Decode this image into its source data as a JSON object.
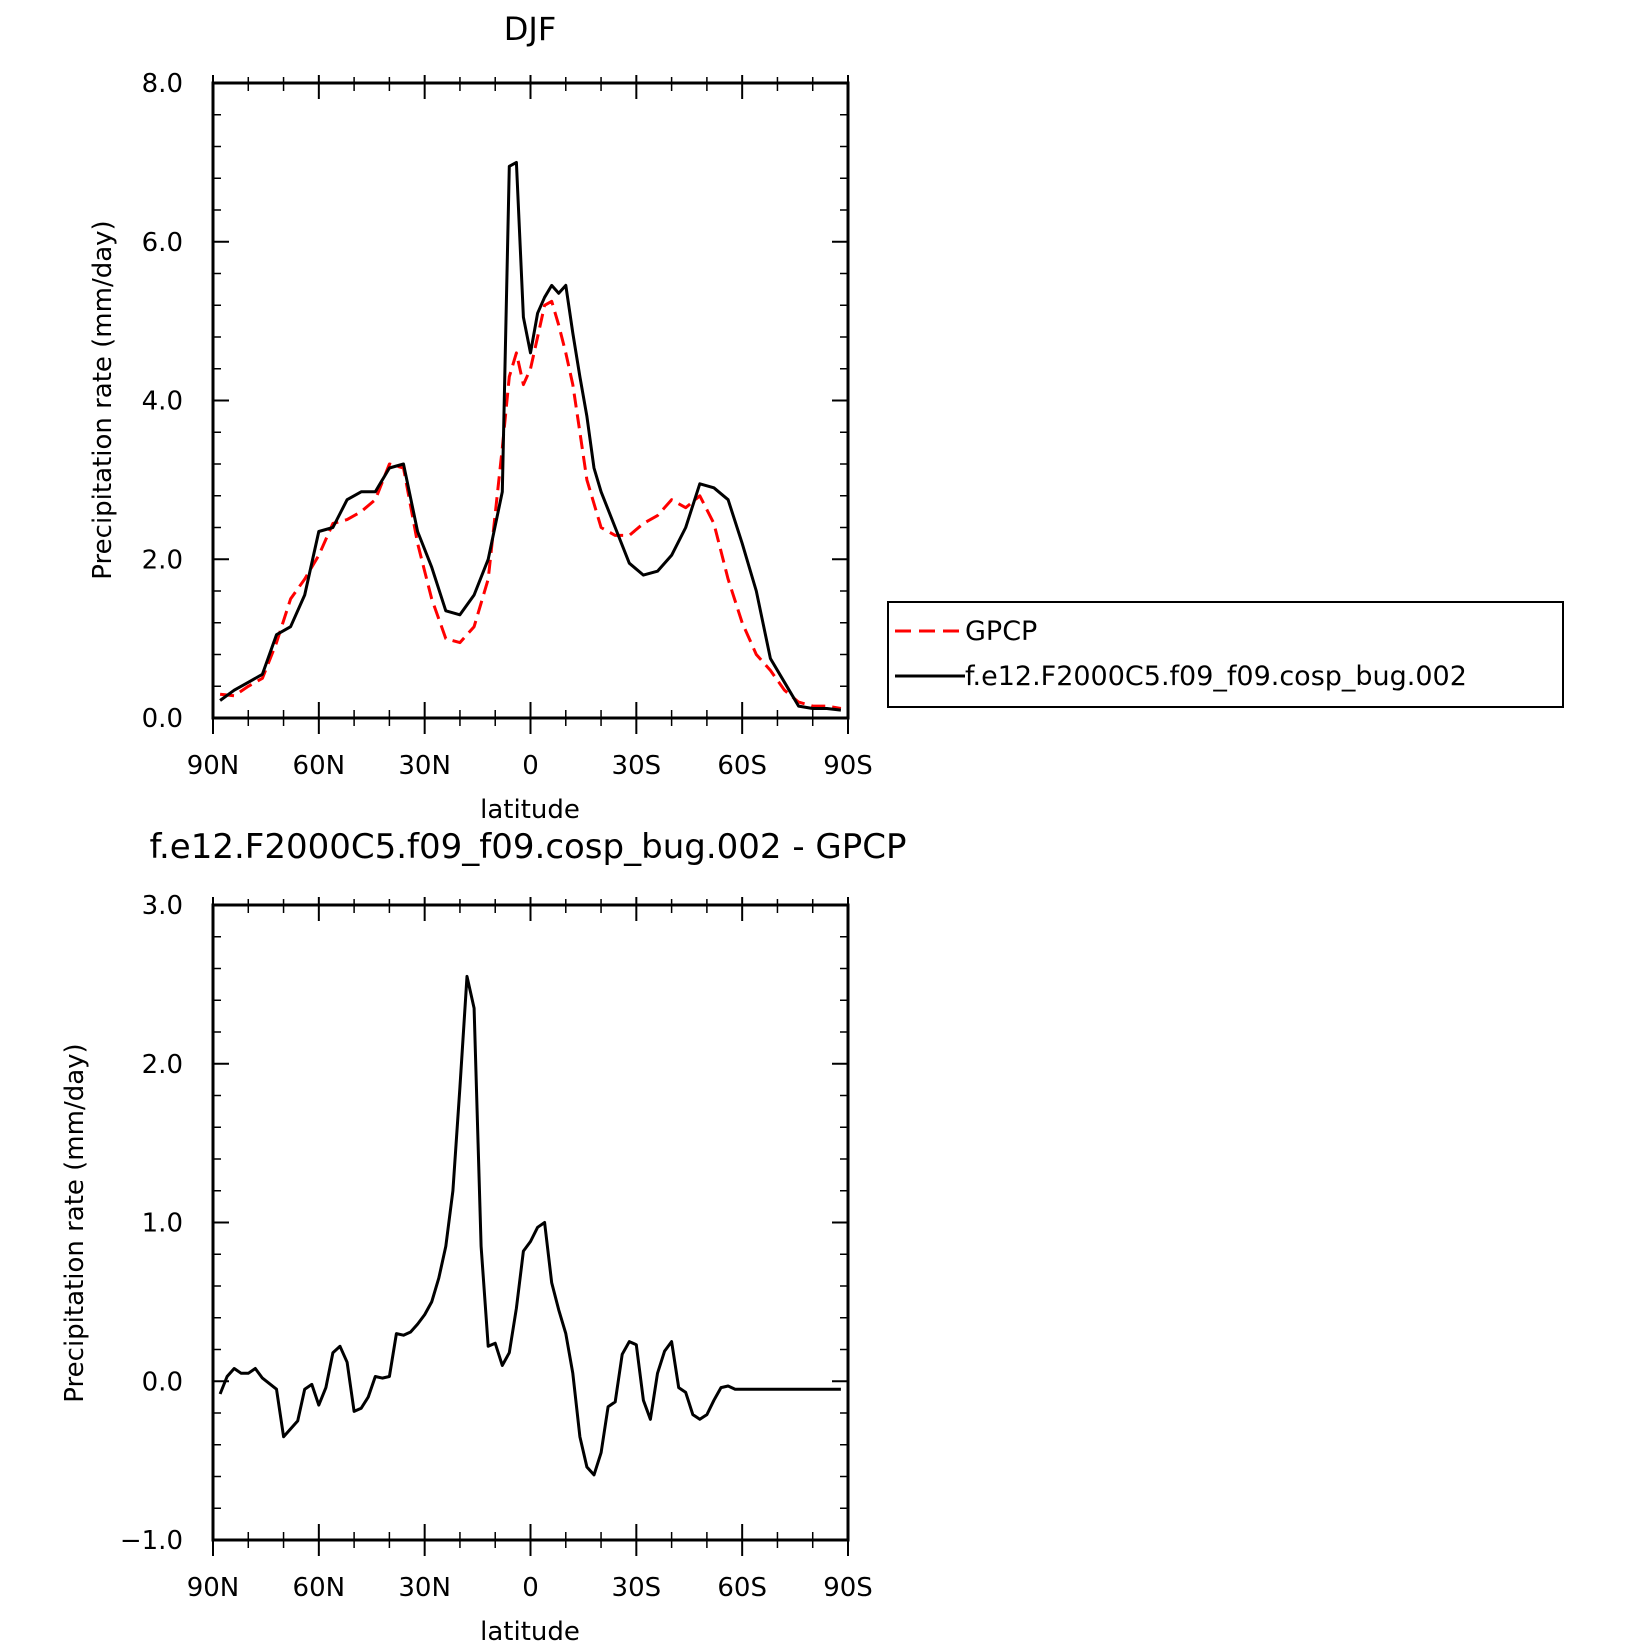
{
  "chart_data": [
    {
      "type": "line",
      "title": "DJF",
      "xlabel": "latitude",
      "ylabel": "Precipitation rate (mm/day)",
      "xlim": [
        -90,
        90
      ],
      "ylim": [
        0,
        8
      ],
      "x_ticks": [
        -90,
        -60,
        -30,
        0,
        30,
        60,
        90
      ],
      "x_tick_labels": [
        "90N",
        "60N",
        "30N",
        "0",
        "30S",
        "60S",
        "90S"
      ],
      "y_ticks": [
        0,
        2,
        4,
        6,
        8
      ],
      "y_tick_labels": [
        "0.0",
        "2.0",
        "4.0",
        "6.0",
        "8.0"
      ],
      "grid": false,
      "legend_position": "right",
      "series": [
        {
          "name": "GPCP",
          "color": "#ff0000",
          "style": "dashed",
          "x": [
            -88,
            -84,
            -80,
            -76,
            -72,
            -68,
            -64,
            -60,
            -56,
            -52,
            -48,
            -44,
            -40,
            -36,
            -32,
            -28,
            -24,
            -20,
            -16,
            -12,
            -8,
            -6,
            -4,
            -2,
            0,
            2,
            4,
            6,
            8,
            10,
            12,
            14,
            16,
            18,
            20,
            24,
            28,
            32,
            36,
            40,
            44,
            48,
            52,
            56,
            60,
            64,
            68,
            72,
            76,
            80,
            84,
            88
          ],
          "y": [
            0.3,
            0.28,
            0.4,
            0.5,
            0.95,
            1.5,
            1.75,
            2.05,
            2.45,
            2.5,
            2.6,
            2.75,
            3.2,
            3.15,
            2.2,
            1.5,
            1.0,
            0.95,
            1.15,
            1.75,
            3.4,
            4.3,
            4.6,
            4.2,
            4.4,
            4.8,
            5.2,
            5.25,
            4.95,
            4.6,
            4.2,
            3.6,
            3.0,
            2.7,
            2.4,
            2.3,
            2.3,
            2.45,
            2.55,
            2.75,
            2.65,
            2.8,
            2.45,
            1.75,
            1.2,
            0.8,
            0.6,
            0.35,
            0.2,
            0.15,
            0.15,
            0.12
          ]
        },
        {
          "name": "f.e12.F2000C5.f09_f09.cosp_bug.002",
          "color": "#000000",
          "style": "solid",
          "x": [
            -88,
            -84,
            -80,
            -76,
            -72,
            -68,
            -64,
            -60,
            -56,
            -52,
            -48,
            -44,
            -40,
            -36,
            -32,
            -28,
            -24,
            -20,
            -16,
            -12,
            -8,
            -6,
            -4,
            -2,
            0,
            2,
            4,
            6,
            8,
            10,
            12,
            14,
            16,
            18,
            20,
            24,
            28,
            32,
            36,
            40,
            44,
            48,
            52,
            56,
            60,
            64,
            68,
            72,
            76,
            80,
            84,
            88
          ],
          "y": [
            0.22,
            0.35,
            0.45,
            0.55,
            1.05,
            1.15,
            1.55,
            2.35,
            2.4,
            2.75,
            2.85,
            2.85,
            3.15,
            3.2,
            2.35,
            1.9,
            1.35,
            1.3,
            1.55,
            2.0,
            2.85,
            6.95,
            7.0,
            5.05,
            4.6,
            5.1,
            5.3,
            5.45,
            5.35,
            5.45,
            4.85,
            4.3,
            3.8,
            3.15,
            2.85,
            2.4,
            1.95,
            1.8,
            1.85,
            2.05,
            2.4,
            2.95,
            2.9,
            2.75,
            2.2,
            1.6,
            0.75,
            0.45,
            0.15,
            0.12,
            0.12,
            0.1
          ]
        }
      ]
    },
    {
      "type": "line",
      "title": "f.e12.F2000C5.f09_f09.cosp_bug.002 - GPCP",
      "xlabel": "latitude",
      "ylabel": "Precipitation rate (mm/day)",
      "xlim": [
        -90,
        90
      ],
      "ylim": [
        -1,
        3
      ],
      "x_ticks": [
        -90,
        -60,
        -30,
        0,
        30,
        60,
        90
      ],
      "x_tick_labels": [
        "90N",
        "60N",
        "30N",
        "0",
        "30S",
        "60S",
        "90S"
      ],
      "y_ticks": [
        -1,
        0,
        1,
        2,
        3
      ],
      "y_tick_labels": [
        "−1.0",
        "0.0",
        "1.0",
        "2.0",
        "3.0"
      ],
      "grid": false,
      "series": [
        {
          "color": "#000000",
          "style": "solid",
          "x": [
            -88,
            -86,
            -84,
            -82,
            -80,
            -78,
            -76,
            -72,
            -70,
            -68,
            -66,
            -64,
            -62,
            -60,
            -58,
            -56,
            -54,
            -52,
            -50,
            -48,
            -46,
            -44,
            -42,
            -40,
            -38,
            -36,
            -34,
            -32,
            -30,
            -28,
            -26,
            -24,
            -22,
            -20,
            -18,
            -16,
            -14,
            -12,
            -10,
            -8,
            -6,
            -4,
            -2,
            0,
            2,
            4,
            6,
            8,
            10,
            12,
            14,
            16,
            18,
            20,
            22,
            24,
            26,
            28,
            30,
            32,
            34,
            36,
            38,
            40,
            42,
            44,
            46,
            48,
            50,
            52,
            54,
            56,
            58,
            60,
            62,
            64,
            66,
            68,
            70,
            72,
            74,
            76,
            78,
            80,
            82,
            84,
            86,
            88
          ],
          "y": [
            -0.08,
            0.03,
            0.08,
            0.05,
            0.05,
            0.08,
            0.02,
            -0.05,
            -0.35,
            -0.3,
            -0.25,
            -0.05,
            -0.02,
            -0.15,
            -0.04,
            0.18,
            0.22,
            0.12,
            -0.19,
            -0.17,
            -0.1,
            0.03,
            0.02,
            0.03,
            0.3,
            0.29,
            0.31,
            0.36,
            0.42,
            0.5,
            0.65,
            0.85,
            1.2,
            1.85,
            2.55,
            2.35,
            0.85,
            0.22,
            0.24,
            0.1,
            0.18,
            0.46,
            0.82,
            0.88,
            0.97,
            1.0,
            0.62,
            0.45,
            0.3,
            0.05,
            -0.35,
            -0.54,
            -0.59,
            -0.45,
            -0.16,
            -0.13,
            0.17,
            0.25,
            0.23,
            -0.12,
            -0.24,
            0.05,
            0.19,
            0.25,
            -0.04,
            -0.07,
            -0.21,
            -0.24,
            -0.21,
            -0.12,
            -0.04,
            -0.03,
            -0.05,
            -0.05,
            -0.05,
            -0.05,
            -0.05,
            -0.05,
            -0.05,
            -0.05,
            -0.05,
            -0.05,
            -0.05,
            -0.05,
            -0.05,
            -0.05,
            -0.05,
            -0.05
          ]
        }
      ]
    }
  ]
}
